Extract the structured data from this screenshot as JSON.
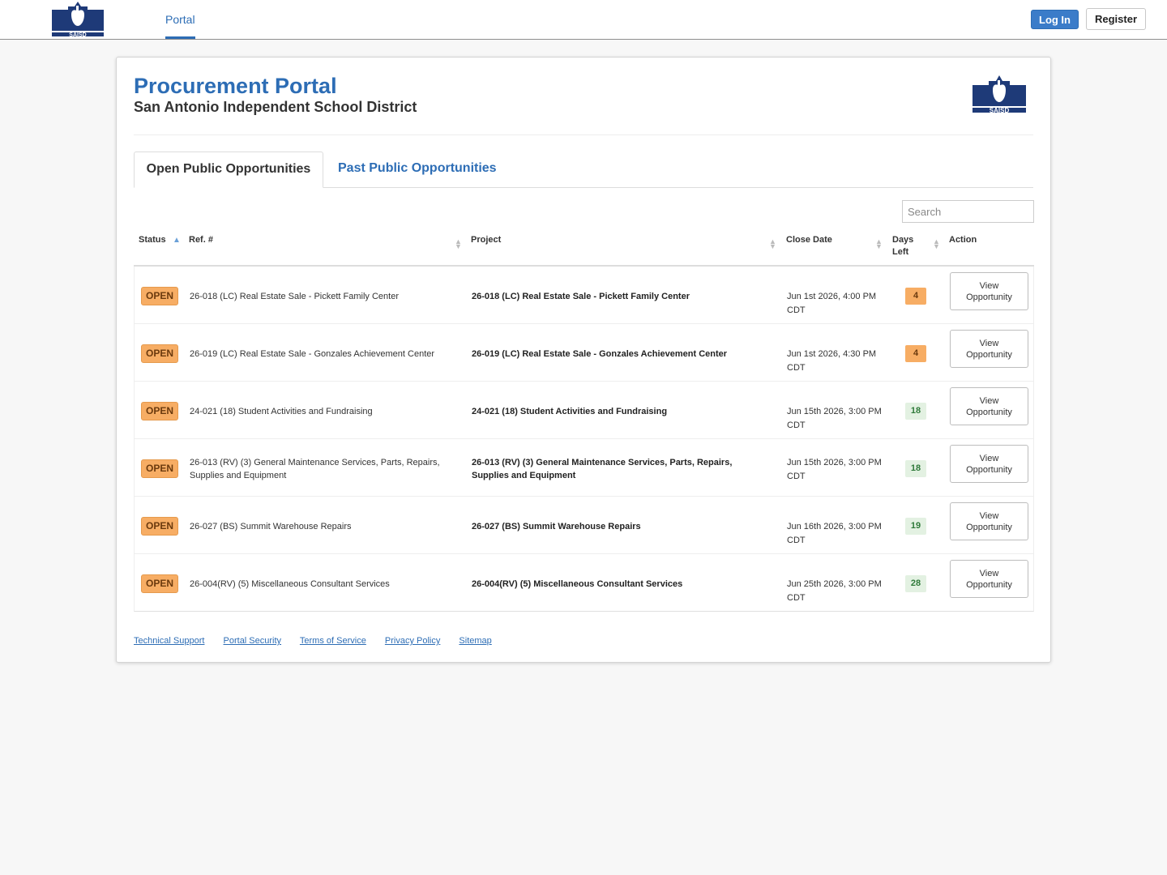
{
  "header": {
    "logo_text": "SAISD",
    "nav_portal": "Portal",
    "login_label": "Log In",
    "register_label": "Register"
  },
  "page": {
    "title": "Procurement Portal",
    "subtitle": "San Antonio Independent School District"
  },
  "tabs": {
    "open": "Open Public Opportunities",
    "past": "Past Public Opportunities"
  },
  "search": {
    "placeholder": "Search"
  },
  "table": {
    "columns": {
      "status": "Status",
      "ref": "Ref. #",
      "project": "Project",
      "close_date": "Close Date",
      "days_left_line1": "Days",
      "days_left_line2": "Left",
      "action": "Action"
    },
    "rows": [
      {
        "status": "OPEN",
        "ref": "26-018 (LC) Real Estate Sale - Pickett Family Center",
        "project": "26-018 (LC) Real Estate Sale - Pickett Family Center",
        "close_date": "Jun 1st 2026, 4:00 PM CDT",
        "days_left": "4",
        "action_line1": "View",
        "action_line2": "Opportunity"
      },
      {
        "status": "OPEN",
        "ref": "26-019 (LC) Real Estate Sale - Gonzales Achievement Center",
        "project": "26-019 (LC) Real Estate Sale - Gonzales Achievement Center",
        "close_date": "Jun 1st 2026, 4:30 PM CDT",
        "days_left": "4",
        "action_line1": "View",
        "action_line2": "Opportunity"
      },
      {
        "status": "OPEN",
        "ref": "24-021 (18) Student Activities and Fundraising",
        "project": "24-021 (18) Student Activities and Fundraising",
        "close_date": "Jun 15th 2026, 3:00 PM CDT",
        "days_left": "18",
        "action_line1": "View",
        "action_line2": "Opportunity"
      },
      {
        "status": "OPEN",
        "ref": "26-013 (RV) (3) General Maintenance Services, Parts, Repairs, Supplies and Equipment",
        "project": "26-013 (RV) (3) General Maintenance Services, Parts, Repairs, Supplies and Equipment",
        "close_date": "Jun 15th 2026, 3:00 PM CDT",
        "days_left": "18",
        "action_line1": "View",
        "action_line2": "Opportunity"
      },
      {
        "status": "OPEN",
        "ref": "26-027 (BS) Summit Warehouse Repairs",
        "project": "26-027 (BS) Summit Warehouse Repairs",
        "close_date": "Jun 16th 2026, 3:00 PM CDT",
        "days_left": "19",
        "action_line1": "View",
        "action_line2": "Opportunity"
      },
      {
        "status": "OPEN",
        "ref": "26-004(RV) (5) Miscellaneous Consultant Services",
        "project": "26-004(RV) (5) Miscellaneous Consultant Services",
        "close_date": "Jun 25th 2026, 3:00 PM CDT",
        "days_left": "28",
        "action_line1": "View",
        "action_line2": "Opportunity"
      }
    ]
  },
  "footer": {
    "links": [
      "Technical Support",
      "Portal Security",
      "Terms of Service",
      "Privacy Policy",
      "Sitemap"
    ]
  },
  "colors": {
    "brand_blue": "#2d6db5",
    "logo_navy": "#1e3a78",
    "badge_orange": "#f7ad64",
    "days_ok_bg": "#e3f1e2"
  }
}
